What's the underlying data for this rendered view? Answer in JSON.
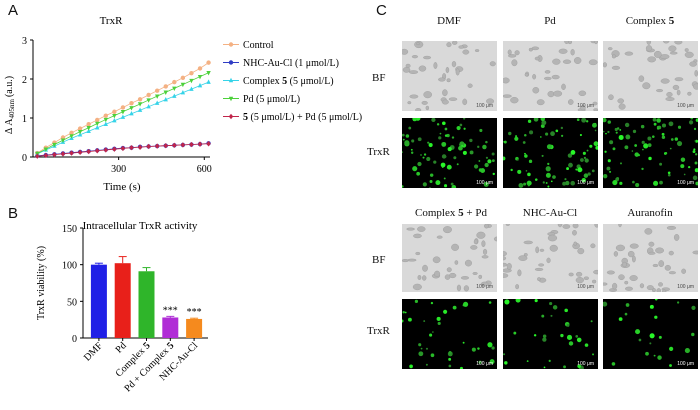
{
  "panels": {
    "a": {
      "letter": "A",
      "chart_data": {
        "type": "line",
        "title": "TrxR",
        "xlabel": "Time (s)",
        "ylabel": "Δ A",
        "ylabel_sub": "405nm",
        "ylabel_unit": "(a.u.)",
        "xlim": [
          0,
          620
        ],
        "ylim": [
          0,
          3
        ],
        "xticks": [
          300,
          600
        ],
        "yticks": [
          0,
          1,
          2,
          3
        ],
        "legend_position": "right",
        "x": [
          15,
          45,
          75,
          105,
          135,
          165,
          195,
          225,
          255,
          285,
          315,
          345,
          375,
          405,
          435,
          465,
          495,
          525,
          555,
          585,
          615
        ],
        "series": [
          {
            "name": "Control",
            "color": "#f4b183",
            "marker": "circle",
            "values": [
              0.1,
              0.24,
              0.37,
              0.5,
              0.62,
              0.73,
              0.84,
              0.95,
              1.06,
              1.16,
              1.27,
              1.38,
              1.48,
              1.59,
              1.7,
              1.81,
              1.92,
              2.03,
              2.15,
              2.27,
              2.42
            ]
          },
          {
            "name": "NHC-Au-Cl (1 μmol/L)",
            "color": "#2f3cc4",
            "marker": "circle",
            "values": [
              0.03,
              0.05,
              0.07,
              0.09,
              0.11,
              0.13,
              0.15,
              0.17,
              0.19,
              0.21,
              0.23,
              0.24,
              0.26,
              0.27,
              0.28,
              0.29,
              0.3,
              0.31,
              0.32,
              0.33,
              0.35
            ]
          },
          {
            "name": "Complex 5 (5 μmol/L)",
            "color": "#35d3e8",
            "marker": "triangle",
            "values": [
              0.08,
              0.18,
              0.28,
              0.38,
              0.48,
              0.57,
              0.66,
              0.75,
              0.84,
              0.93,
              1.02,
              1.11,
              1.2,
              1.29,
              1.38,
              1.47,
              1.56,
              1.65,
              1.74,
              1.83,
              1.92
            ]
          },
          {
            "name": "Pd (5 μmol/L)",
            "color": "#4cd13a",
            "marker": "triangle-down",
            "values": [
              0.09,
              0.2,
              0.32,
              0.43,
              0.54,
              0.65,
              0.75,
              0.86,
              0.96,
              1.06,
              1.16,
              1.26,
              1.36,
              1.46,
              1.56,
              1.66,
              1.76,
              1.86,
              1.96,
              2.06,
              2.16
            ]
          },
          {
            "name": "5 (5 μmol/L) + Pd (5 μmol/L)",
            "color": "#c0254a",
            "marker": "diamond",
            "values": [
              0.02,
              0.04,
              0.06,
              0.08,
              0.1,
              0.12,
              0.14,
              0.16,
              0.18,
              0.2,
              0.22,
              0.24,
              0.25,
              0.27,
              0.28,
              0.29,
              0.3,
              0.31,
              0.32,
              0.33,
              0.34
            ]
          }
        ],
        "legend": [
          {
            "text": "Control",
            "bold_part": ""
          },
          {
            "text": "NHC-Au-Cl (1 μmol/L)",
            "bold_part": ""
          },
          {
            "text": "Complex ",
            "bold_part": "5",
            "after": " (5 μmol/L)"
          },
          {
            "text": "Pd (5 μmol/L)",
            "bold_part": ""
          },
          {
            "text": "",
            "bold_part": "5",
            "after": " (5 μmol/L) + Pd (5 μmol/L)"
          }
        ]
      }
    },
    "b": {
      "letter": "B",
      "chart_data": {
        "type": "bar",
        "title": "Intracellular TrxR activity",
        "ylabel": "TrxR viability (%)",
        "ylim": [
          0,
          150
        ],
        "yticks": [
          0,
          50,
          100,
          150
        ],
        "categories": [
          "DMF",
          "Pd",
          "Complex 5",
          "Pd + Complex 5",
          "NHC-Au-Cl"
        ],
        "category_parts": [
          {
            "text": "DMF",
            "bold": ""
          },
          {
            "text": "Pd",
            "bold": ""
          },
          {
            "text": "Complex ",
            "bold": "5"
          },
          {
            "text": "Pd + Complex ",
            "bold": "5"
          },
          {
            "text": "NHC-Au-Cl",
            "bold": ""
          }
        ],
        "values": [
          100,
          102,
          91,
          28,
          26
        ],
        "errors": [
          2,
          9,
          5,
          1.5,
          1
        ],
        "colors": [
          "#2020e6",
          "#e8201a",
          "#2fb52a",
          "#b02dd6",
          "#f58a1e"
        ],
        "annotations": [
          "",
          "",
          "",
          "***",
          "***"
        ]
      }
    },
    "c": {
      "letter": "C",
      "row_labels": {
        "bf": "BF",
        "fl": "TrxR"
      },
      "top_columns": [
        "DMF",
        "Pd",
        "Complex 5"
      ],
      "bottom_columns": [
        "Complex 5 + Pd",
        "NHC-Au-Cl",
        "Auranofin"
      ],
      "top_bold": [
        "",
        "",
        "5"
      ],
      "bottom_bold": [
        "5",
        "",
        ""
      ],
      "top_pre": [
        "DMF",
        "Pd",
        "Complex "
      ],
      "top_post": [
        "",
        "",
        ""
      ],
      "bottom_pre": [
        "Complex ",
        "NHC-Au-Cl",
        "Auranofin"
      ],
      "bottom_post": [
        " + Pd",
        "",
        ""
      ],
      "scale_bar": "100 μm"
    }
  }
}
